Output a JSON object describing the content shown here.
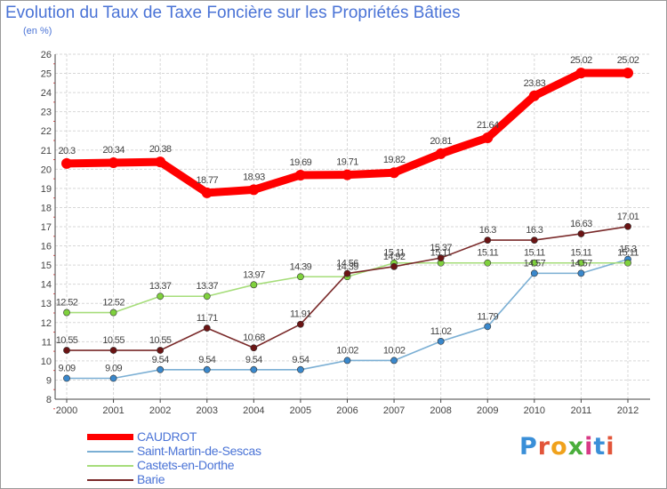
{
  "title": "Evolution du Taux de Taxe Foncière sur les Propriétés Bâties",
  "unit": "(en %)",
  "logo": {
    "text": "Proxiti",
    "colors": [
      "#3a8fd8",
      "#e2553a",
      "#f0a21c",
      "#4aae3c",
      "#d83a86",
      "#3a8fd8",
      "#e2553a"
    ]
  },
  "chart_data": {
    "type": "line",
    "title": "Evolution du Taux de Taxe Foncière sur les Propriétés Bâties",
    "ylabel": "(en %)",
    "xlabel": "",
    "ylim": [
      8,
      26
    ],
    "yticks": [
      8,
      9,
      10,
      11,
      12,
      13,
      14,
      15,
      16,
      17,
      18,
      19,
      20,
      21,
      22,
      23,
      24,
      25,
      26
    ],
    "grid": true,
    "legend_position": "bottom-left",
    "x": [
      "2000",
      "2001",
      "2002",
      "2003",
      "2004",
      "2005",
      "2006",
      "2007",
      "2008",
      "2009",
      "2010",
      "2011",
      "2012"
    ],
    "series": [
      {
        "name": "CAUDROT",
        "color": "#ff0000",
        "point_color": "#ff0000",
        "values": [
          20.3,
          20.34,
          20.38,
          18.77,
          18.93,
          19.69,
          19.71,
          19.82,
          20.81,
          21.64,
          23.83,
          25.02,
          25.02
        ],
        "labels": [
          "20.3",
          "20.34",
          "20.38",
          "18.77",
          "18.93",
          "19.69",
          "19.71",
          "19.82",
          "20.81",
          "21.64",
          "23.83",
          "25.02",
          "25.02"
        ]
      },
      {
        "name": "Saint-Martin-de-Sescas",
        "color": "#7bafd4",
        "point_color": "#3a88cc",
        "values": [
          9.09,
          9.09,
          9.54,
          9.54,
          9.54,
          9.54,
          10.02,
          10.02,
          11.02,
          11.79,
          14.57,
          14.57,
          15.3
        ],
        "labels": [
          "9.09",
          "9.09",
          "9.54",
          "9.54",
          "9.54",
          "9.54",
          "10.02",
          "10.02",
          "11.02",
          "11.79",
          "14.57",
          "14.57",
          "15.3"
        ]
      },
      {
        "name": "Castets-en-Dorthe",
        "color": "#a6dd7a",
        "point_color": "#7fd13d",
        "values": [
          12.52,
          12.52,
          13.37,
          13.37,
          13.97,
          14.39,
          14.39,
          15.11,
          15.11,
          15.11,
          15.11,
          15.11,
          15.11
        ],
        "labels": [
          "12.52",
          "12.52",
          "13.37",
          "13.37",
          "13.97",
          "14.39",
          "14.39",
          "15.11",
          "15.11",
          "15.11",
          "15.11",
          "15.11",
          "15.11"
        ]
      },
      {
        "name": "Barie",
        "color": "#7a2a2a",
        "point_color": "#6b1414",
        "values": [
          10.55,
          10.55,
          10.55,
          11.71,
          10.68,
          11.91,
          14.56,
          14.92,
          15.37,
          16.3,
          16.3,
          16.63,
          17.01
        ],
        "labels": [
          "10.55",
          "10.55",
          "10.55",
          "11.71",
          "10.68",
          "11.91",
          "14.56",
          "14.92",
          "15.37",
          "16.3",
          "16.3",
          "16.63",
          "17.01"
        ]
      }
    ]
  }
}
